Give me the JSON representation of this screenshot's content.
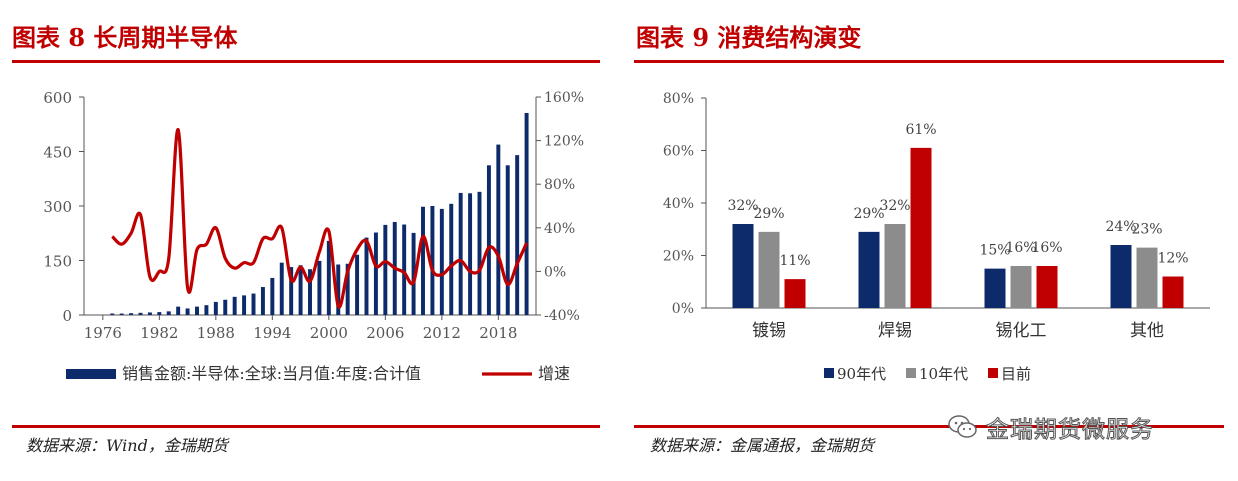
{
  "left": {
    "title": "图表 8 长周期半导体",
    "source": "数据来源：Wind，金瑞期货"
  },
  "right": {
    "title": "图表 9 消费结构演变",
    "source": "数据来源：金属通报，金瑞期货"
  },
  "watermark": {
    "text": "金瑞期货微服务",
    "icon": "wechat-icon"
  },
  "chart_data": [
    {
      "type": "bar",
      "x_tick_labels": [
        "1976",
        "1982",
        "1988",
        "1994",
        "2000",
        "2006",
        "2012",
        "2018"
      ],
      "x": [
        1977,
        1978,
        1979,
        1980,
        1981,
        1982,
        1983,
        1984,
        1985,
        1986,
        1987,
        1988,
        1989,
        1990,
        1991,
        1992,
        1993,
        1994,
        1995,
        1996,
        1997,
        1998,
        1999,
        2000,
        2001,
        2002,
        2003,
        2004,
        2005,
        2006,
        2007,
        2008,
        2009,
        2010,
        2011,
        2012,
        2013,
        2014,
        2015,
        2016,
        2017,
        2018,
        2019,
        2020,
        2021
      ],
      "series": [
        {
          "name": "销售金额:半导体:全球:当月值:年度:合计值",
          "type": "bar",
          "axis": "left",
          "color": "#0d2b6b",
          "values": [
            4,
            4,
            5,
            6,
            7,
            8,
            10,
            23,
            18,
            23,
            27,
            36,
            42,
            50,
            54,
            59,
            77,
            102,
            144,
            132,
            137,
            126,
            149,
            204,
            139,
            141,
            166,
            213,
            227,
            248,
            256,
            249,
            226,
            298,
            300,
            292,
            306,
            336,
            335,
            339,
            412,
            469,
            412,
            440,
            556
          ]
        },
        {
          "name": "增速",
          "type": "line",
          "axis": "right",
          "color": "#c00000",
          "values": [
            32,
            25,
            35,
            52,
            -5,
            0,
            12,
            130,
            -15,
            20,
            25,
            40,
            12,
            3,
            8,
            8,
            30,
            30,
            40,
            -8,
            4,
            -9,
            18,
            37,
            -32,
            0,
            20,
            28,
            5,
            9,
            3,
            -1,
            -10,
            32,
            1,
            -3,
            5,
            10,
            0,
            1,
            22,
            14,
            -12,
            7,
            26
          ]
        }
      ],
      "yleft": {
        "ticks": [
          "0",
          "150",
          "300",
          "450",
          "600"
        ],
        "ylim": [
          0,
          600
        ]
      },
      "yright": {
        "ticks": [
          "-40%",
          "0%",
          "40%",
          "80%",
          "120%",
          "160%"
        ],
        "ylim": [
          -40,
          160
        ]
      },
      "xlim": [
        1974,
        2022
      ],
      "legend_position": "bottom"
    },
    {
      "type": "bar",
      "categories": [
        "镀锡",
        "焊锡",
        "锡化工",
        "其他"
      ],
      "series": [
        {
          "name": "90年代",
          "color": "#0d2b6b",
          "values": [
            32,
            29,
            15,
            24
          ],
          "labels": [
            "32%",
            "29%",
            "15%",
            "24%"
          ]
        },
        {
          "name": "10年代",
          "color": "#8c8c8c",
          "values": [
            29,
            32,
            16,
            23
          ],
          "labels": [
            "29%",
            "32%",
            "16%",
            "23%"
          ]
        },
        {
          "name": "目前",
          "color": "#c00000",
          "values": [
            11,
            61,
            16,
            12
          ],
          "labels": [
            "11%",
            "61%",
            "16%",
            "12%"
          ]
        }
      ],
      "y_ticks": [
        "0%",
        "20%",
        "40%",
        "60%",
        "80%"
      ],
      "ylim": [
        0,
        80
      ],
      "legend_position": "bottom"
    }
  ]
}
